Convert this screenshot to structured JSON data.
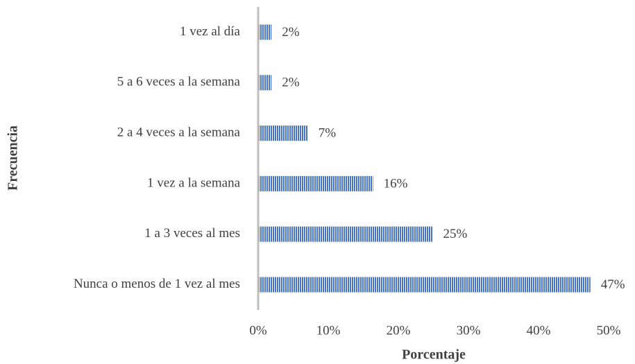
{
  "chart_data": {
    "type": "bar",
    "orientation": "horizontal",
    "categories": [
      "1 vez al día",
      "5 a 6 veces a la semana",
      "2 a 4 veces a la semana",
      "1 vez a la semana",
      "1 a 3 veces al mes",
      "Nunca o menos de 1 vez al mes"
    ],
    "values": [
      1.9,
      1.9,
      7.1,
      16.4,
      24.9,
      47.4
    ],
    "value_labels": [
      "2%",
      "2%",
      "7%",
      "16%",
      "25%",
      "47%"
    ],
    "color": "#4472c4",
    "xlim": [
      0,
      50
    ],
    "xticks": [
      {
        "value": 0,
        "label": "0%"
      },
      {
        "value": 10,
        "label": "10%"
      },
      {
        "value": 20,
        "label": "20%"
      },
      {
        "value": 30,
        "label": "30%"
      },
      {
        "value": 40,
        "label": "40%"
      },
      {
        "value": 50,
        "label": "50%"
      }
    ],
    "xlabel": "Porcentaje",
    "ylabel": "Frecuencia"
  }
}
